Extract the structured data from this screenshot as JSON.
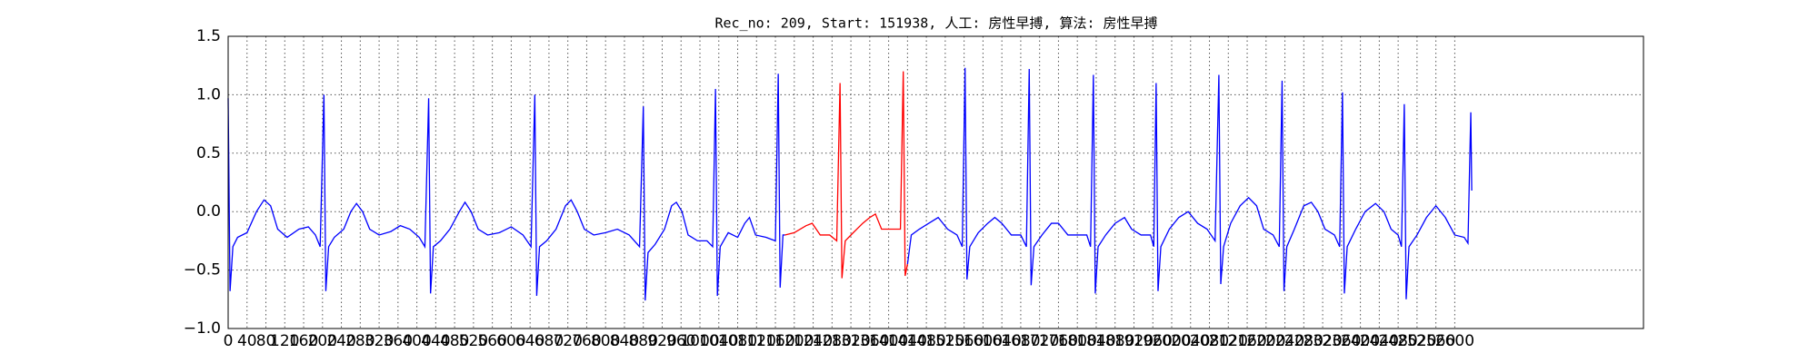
{
  "chart_data": {
    "type": "line",
    "title": "Rec_no: 209, Start: 151938, 人工: 房性早搏, 算法: 房性早搏",
    "xlim": [
      0,
      3000
    ],
    "xticks": [
      0,
      40,
      80,
      120,
      160,
      200,
      240,
      280,
      320,
      360,
      400,
      440,
      480,
      520,
      560,
      600,
      640,
      680,
      720,
      760,
      800,
      840,
      880,
      920,
      960,
      1000,
      1040,
      1080,
      1120,
      1160,
      1200,
      1240,
      1280,
      1320,
      1360,
      1400,
      1440,
      1480,
      1520,
      1560,
      1600,
      1640,
      1680,
      1720,
      1760,
      1800,
      1840,
      1880,
      1920,
      1960,
      2000,
      2040,
      2080,
      2120,
      2160,
      2200,
      2240,
      2280,
      2320,
      2360,
      2400,
      2440,
      2480,
      2520,
      2560,
      2600
    ],
    "ylim": [
      -1,
      1.5
    ],
    "yticks": [
      {
        "value": -1,
        "label": "−1.0"
      },
      {
        "value": -0.5,
        "label": "−0.5"
      },
      {
        "value": 0,
        "label": "0.0"
      },
      0.5,
      {
        "value": 1,
        "label": "1.0"
      },
      1.5
    ],
    "grid": true,
    "series": [
      {
        "color": "#0000ff",
        "x": [
          0,
          4,
          10,
          20,
          40,
          60,
          76,
          90,
          105,
          125,
          150,
          170,
          185,
          195,
          203,
          207,
          213,
          225,
          245,
          260,
          272,
          285,
          300,
          320,
          345,
          365,
          385,
          405,
          417,
          425,
          429,
          435,
          450,
          470,
          490,
          502,
          515,
          530,
          550,
          575,
          600,
          625,
          642,
          650,
          654,
          660,
          675,
          695,
          715,
          727,
          740,
          755,
          775,
          800,
          825,
          850,
          872,
          880,
          884,
          890,
          905,
          925,
          940,
          950,
          962,
          975,
          995,
          1015,
          1027,
          1033,
          1037,
          1043,
          1060,
          1080,
          1095,
          1105,
          1118,
          1140,
          1160,
          1166,
          1170,
          1176,
          1180,
          1300,
          1440,
          1448,
          1465,
          1485,
          1505,
          1525,
          1545,
          1556,
          1562,
          1566,
          1572,
          1590,
          1610,
          1625,
          1640,
          1660,
          1680,
          1692,
          1698,
          1702,
          1708,
          1725,
          1745,
          1760,
          1780,
          1800,
          1820,
          1828,
          1834,
          1838,
          1844,
          1860,
          1880,
          1900,
          1915,
          1935,
          1955,
          1962,
          1967,
          1971,
          1977,
          1995,
          2015,
          2035,
          2055,
          2075,
          2092,
          2100,
          2104,
          2110,
          2125,
          2145,
          2163,
          2180,
          2195,
          2215,
          2228,
          2234,
          2238,
          2244,
          2260,
          2280,
          2296,
          2310,
          2325,
          2345,
          2356,
          2362,
          2366,
          2372,
          2390,
          2410,
          2432,
          2450,
          2465,
          2480,
          2487,
          2493,
          2497,
          2503,
          2520,
          2540,
          2560,
          2580,
          2600,
          2620,
          2628,
          2634,
          2636
        ],
        "values": [
          0.97,
          -0.68,
          -0.3,
          -0.22,
          -0.18,
          0.0,
          0.1,
          0.05,
          -0.15,
          -0.22,
          -0.15,
          -0.13,
          -0.2,
          -0.3,
          1.0,
          -0.68,
          -0.3,
          -0.22,
          -0.15,
          0.0,
          0.07,
          0.0,
          -0.15,
          -0.2,
          -0.17,
          -0.12,
          -0.15,
          -0.22,
          -0.3,
          0.97,
          -0.7,
          -0.3,
          -0.25,
          -0.15,
          0.0,
          0.08,
          0.0,
          -0.15,
          -0.2,
          -0.18,
          -0.13,
          -0.2,
          -0.3,
          1.0,
          -0.72,
          -0.3,
          -0.25,
          -0.15,
          0.05,
          0.1,
          0.0,
          -0.15,
          -0.2,
          -0.18,
          -0.15,
          -0.2,
          -0.3,
          0.9,
          -0.76,
          -0.35,
          -0.28,
          -0.15,
          0.05,
          0.08,
          0.0,
          -0.2,
          -0.25,
          -0.25,
          -0.3,
          1.05,
          -0.72,
          -0.3,
          -0.18,
          -0.22,
          -0.1,
          -0.05,
          -0.2,
          -0.22,
          -0.25,
          1.18,
          -0.65,
          -0.2,
          -0.2,
          null,
          -0.45,
          -0.2,
          -0.15,
          -0.1,
          -0.05,
          -0.15,
          -0.2,
          -0.3,
          1.23,
          -0.58,
          -0.3,
          -0.18,
          -0.1,
          -0.05,
          -0.1,
          -0.2,
          -0.2,
          -0.3,
          1.22,
          -0.63,
          -0.3,
          -0.2,
          -0.1,
          -0.1,
          -0.2,
          -0.2,
          -0.2,
          -0.3,
          1.17,
          -0.7,
          -0.3,
          -0.2,
          -0.1,
          -0.05,
          -0.15,
          -0.2,
          -0.2,
          -0.3,
          1.1,
          -0.68,
          -0.3,
          -0.15,
          -0.05,
          0.0,
          -0.1,
          -0.15,
          -0.25,
          1.17,
          -0.62,
          -0.3,
          -0.1,
          0.05,
          0.12,
          0.05,
          -0.15,
          -0.2,
          -0.3,
          1.12,
          -0.68,
          -0.3,
          -0.15,
          0.05,
          0.08,
          0.0,
          -0.15,
          -0.2,
          -0.3,
          1.02,
          -0.7,
          -0.3,
          -0.15,
          0.0,
          0.07,
          0.0,
          -0.15,
          -0.2,
          -0.3,
          0.92,
          -0.75,
          -0.3,
          -0.2,
          -0.05,
          0.05,
          -0.05,
          -0.2,
          -0.22,
          -0.27,
          0.85,
          0.18
        ]
      },
      {
        "color": "#ff0000",
        "x": [
          1180,
          1200,
          1225,
          1238,
          1255,
          1275,
          1290,
          1297,
          1301,
          1308,
          1325,
          1345,
          1360,
          1372,
          1385,
          1405,
          1425,
          1431,
          1435,
          1440
        ],
        "values": [
          -0.2,
          -0.18,
          -0.12,
          -0.1,
          -0.2,
          -0.2,
          -0.25,
          1.1,
          -0.57,
          -0.25,
          -0.18,
          -0.1,
          -0.05,
          -0.02,
          -0.15,
          -0.15,
          -0.15,
          1.2,
          -0.55,
          -0.45
        ]
      }
    ]
  }
}
